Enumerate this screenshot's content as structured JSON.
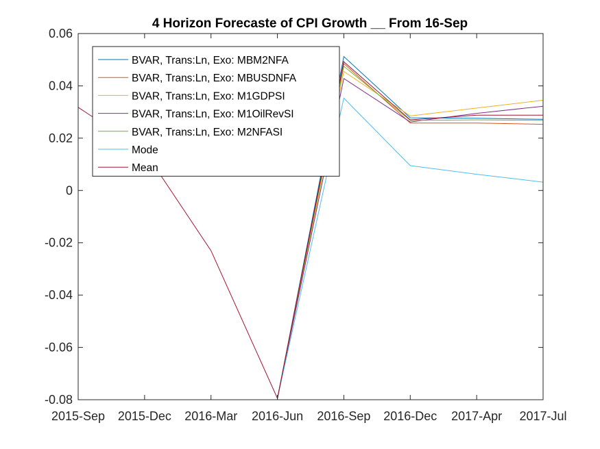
{
  "chart_data": {
    "type": "line",
    "title": "4 Horizon Forecaste of CPI Growth __ From 16-Sep",
    "xlabel": "",
    "ylabel": "",
    "categories": [
      "2015-Sep",
      "2015-Dec",
      "2016-Mar",
      "2016-Jun",
      "2016-Sep",
      "2016-Dec",
      "2017-Apr",
      "2017-Jul"
    ],
    "ylim": [
      -0.08,
      0.06
    ],
    "yticks": [
      "-0.08",
      "-0.06",
      "-0.04",
      "-0.02",
      "0",
      "0.02",
      "0.04",
      "0.06"
    ],
    "grid": false,
    "legend_position": "top-left",
    "history": [
      0.0318,
      0.015,
      -0.023,
      -0.0795,
      0.0495
    ],
    "series": [
      {
        "name": "BVAR, Trans:Ln, Exo: MBM2NFA",
        "color": "#0072BD",
        "values": [
          null,
          null,
          null,
          null,
          0.0512,
          0.0278,
          0.0276,
          0.0272
        ]
      },
      {
        "name": "BVAR, Trans:Ln, Exo: MBUSDNFA",
        "color": "#D95319",
        "values": [
          null,
          null,
          null,
          null,
          0.0485,
          0.0258,
          0.0258,
          0.0253
        ]
      },
      {
        "name": "BVAR, Trans:Ln, Exo: M1GDPSI",
        "color": "#EDB120",
        "values": [
          null,
          null,
          null,
          null,
          0.0455,
          0.0285,
          0.0315,
          0.0345
        ]
      },
      {
        "name": "BVAR, Trans:Ln, Exo: M1OilRevSI",
        "color": "#7E2F8E",
        "values": [
          null,
          null,
          null,
          null,
          0.0428,
          0.0262,
          0.0295,
          0.0322
        ]
      },
      {
        "name": "BVAR, Trans:Ln, Exo: M2NFASI",
        "color": "#77AC30",
        "values": [
          null,
          null,
          null,
          null,
          0.0475,
          0.0268,
          0.027,
          0.0268
        ]
      },
      {
        "name": "Mode",
        "color": "#4DBEEE",
        "values": [
          null,
          null,
          null,
          null,
          0.0353,
          0.0095,
          0.0062,
          0.0032
        ]
      },
      {
        "name": "Mean",
        "color": "#A2142F",
        "values": [
          null,
          null,
          null,
          null,
          0.0492,
          0.027,
          0.0288,
          0.0288
        ]
      }
    ]
  }
}
